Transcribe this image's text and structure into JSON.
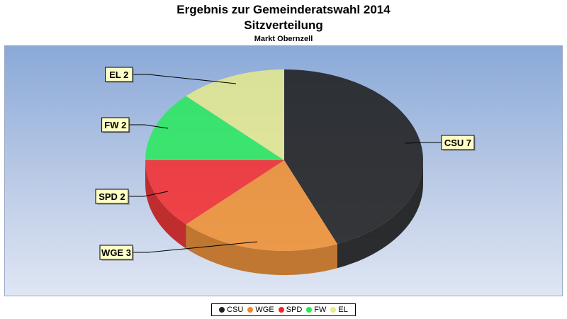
{
  "chart_data": {
    "type": "pie",
    "title": "Ergebnis zur Gemeinderatswahl 2014",
    "subtitle": "Sitzverteilung",
    "subtitle2": "Markt Obernzell",
    "categories": [
      "CSU",
      "WGE",
      "SPD",
      "FW",
      "EL"
    ],
    "values": [
      7,
      3,
      2,
      2,
      2
    ],
    "data_labels": [
      "CSU 7",
      "WGE 3",
      "SPD 2",
      "FW 2",
      "EL 2"
    ],
    "colors": [
      "#1f1f1f",
      "#f28a24",
      "#f52222",
      "#22ea55",
      "#e9ec8a"
    ],
    "legend_position": "bottom"
  }
}
